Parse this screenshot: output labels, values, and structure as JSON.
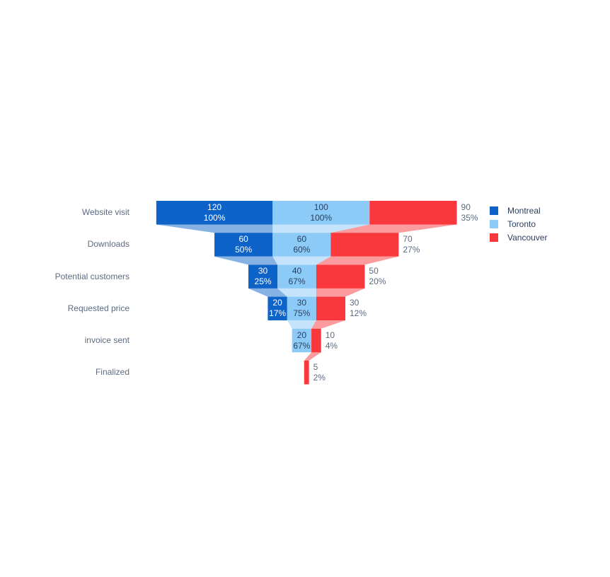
{
  "chart_data": {
    "type": "funnel",
    "orientation": "h",
    "background": "#ffffff",
    "stages": [
      "Website visit",
      "Downloads",
      "Potential customers",
      "Requested price",
      "invoice sent",
      "Finalized"
    ],
    "series": [
      {
        "name": "Montreal",
        "color": "#0d63c7",
        "textposition": "inside",
        "text_color": "#ffffff",
        "textinfo": "value+percent initial",
        "values": [
          120,
          60,
          30,
          20,
          null,
          null
        ],
        "labels": [
          [
            "120",
            "100%"
          ],
          [
            "60",
            "50%"
          ],
          [
            "30",
            "25%"
          ],
          [
            "20",
            "17%"
          ],
          null,
          null
        ]
      },
      {
        "name": "Toronto",
        "color": "#8ccaf7",
        "textposition": "inside",
        "text_color": "#2a3f5f",
        "textinfo": "value+percent previous",
        "values": [
          100,
          60,
          40,
          30,
          20,
          null
        ],
        "labels": [
          [
            "100",
            "100%"
          ],
          [
            "60",
            "60%"
          ],
          [
            "40",
            "67%"
          ],
          [
            "30",
            "75%"
          ],
          [
            "20",
            "67%"
          ],
          null
        ]
      },
      {
        "name": "Vancouver",
        "color": "#f9383e",
        "textposition": "outside",
        "text_color": "#5c6b82",
        "textinfo": "value+percent total",
        "values": [
          90,
          70,
          50,
          30,
          10,
          5
        ],
        "labels": [
          [
            "90",
            "35%"
          ],
          [
            "70",
            "27%"
          ],
          [
            "50",
            "20%"
          ],
          [
            "30",
            "12%"
          ],
          [
            "10",
            "4%"
          ],
          [
            "5",
            "2%"
          ]
        ]
      }
    ],
    "legend": {
      "position": "right"
    },
    "connector_opacity": 0.5,
    "stage_label_color": "#5c6b82",
    "legend_text_color": "#2a3f5f"
  }
}
